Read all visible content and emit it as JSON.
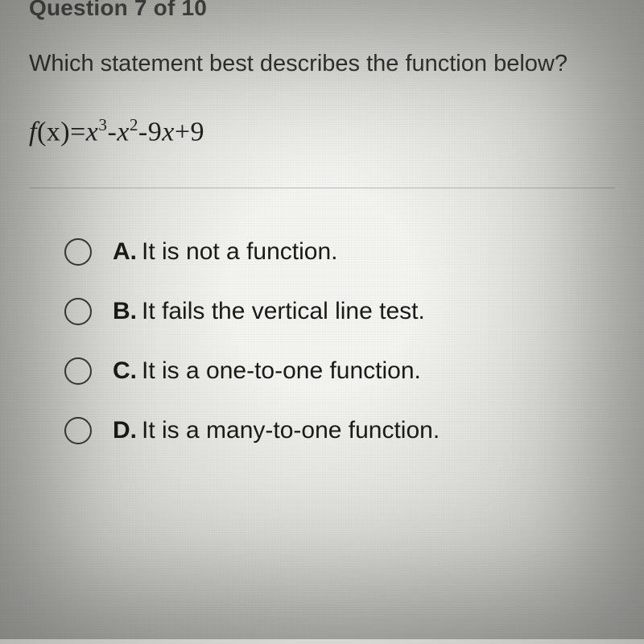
{
  "header": {
    "question_counter": "Question 7 of 10"
  },
  "question": {
    "prompt": "Which statement best describes the function below?",
    "formula_fx": "f",
    "formula_x": "(x)",
    "formula_eq": "=",
    "formula_t1_base": "x",
    "formula_t1_exp": "3",
    "formula_m1": "-",
    "formula_t2_base": "x",
    "formula_t2_exp": "2",
    "formula_m2": "-",
    "formula_t3_coef": "9",
    "formula_t3_base": "x",
    "formula_p1": "+",
    "formula_t4": "9"
  },
  "answers": [
    {
      "letter": "A.",
      "text": "It is not a function."
    },
    {
      "letter": "B.",
      "text": "It fails the vertical line test."
    },
    {
      "letter": "C.",
      "text": "It is a one-to-one function."
    },
    {
      "letter": "D.",
      "text": "It is a many-to-one function."
    }
  ],
  "style": {
    "body_width": 800,
    "body_height": 800,
    "radio_border_color": "#3a3a3a",
    "text_color": "#2a2a2a",
    "divider_color": "rgba(120,120,120,0.45)"
  }
}
